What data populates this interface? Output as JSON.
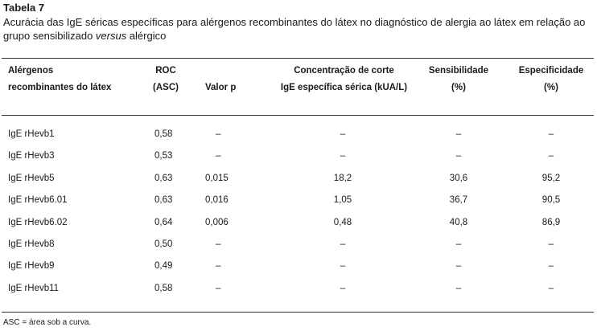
{
  "table": {
    "label": "Tabela 7",
    "caption_before": "Acurácia das IgE séricas específicas para alérgenos recombinantes do látex no diagnóstico de alergia ao látex em relação ao grupo sensibilizado ",
    "caption_italic": "versus",
    "caption_after": " alérgico",
    "headers": {
      "allergen": [
        "Alérgenos",
        "recombinantes do látex"
      ],
      "roc": [
        "ROC",
        "(ASC)"
      ],
      "p": [
        "Valor p"
      ],
      "cutoff": [
        "Concentração de corte",
        "IgE específica sérica (kUA/L)"
      ],
      "sensitivity": [
        "Sensibilidade",
        "(%)"
      ],
      "specificity": [
        "Especificidade",
        "(%)"
      ]
    },
    "rows": [
      {
        "name": "IgE rHevb1",
        "roc": "0,58",
        "p": "–",
        "cutoff": "–",
        "sens": "–",
        "spec": "–"
      },
      {
        "name": "IgE rHevb3",
        "roc": "0,53",
        "p": "–",
        "cutoff": "–",
        "sens": "–",
        "spec": "–"
      },
      {
        "name": "IgE rHevb5",
        "roc": "0,63",
        "p": "0,015",
        "cutoff": "18,2",
        "sens": "30,6",
        "spec": "95,2"
      },
      {
        "name": "IgE rHevb6.01",
        "roc": "0,63",
        "p": "0,016",
        "cutoff": "1,05",
        "sens": "36,7",
        "spec": "90,5"
      },
      {
        "name": "IgE rHevb6.02",
        "roc": "0,64",
        "p": "0,006",
        "cutoff": "0,48",
        "sens": "40,8",
        "spec": "86,9"
      },
      {
        "name": "IgE rHevb8",
        "roc": "0,50",
        "p": "–",
        "cutoff": "–",
        "sens": "–",
        "spec": "–"
      },
      {
        "name": "IgE rHevb9",
        "roc": "0,49",
        "p": "–",
        "cutoff": "–",
        "sens": "–",
        "spec": "–"
      },
      {
        "name": "IgE rHevb11",
        "roc": "0,58",
        "p": "–",
        "cutoff": "–",
        "sens": "–",
        "spec": "–"
      }
    ],
    "footnote": "ASC = área sob a curva."
  }
}
